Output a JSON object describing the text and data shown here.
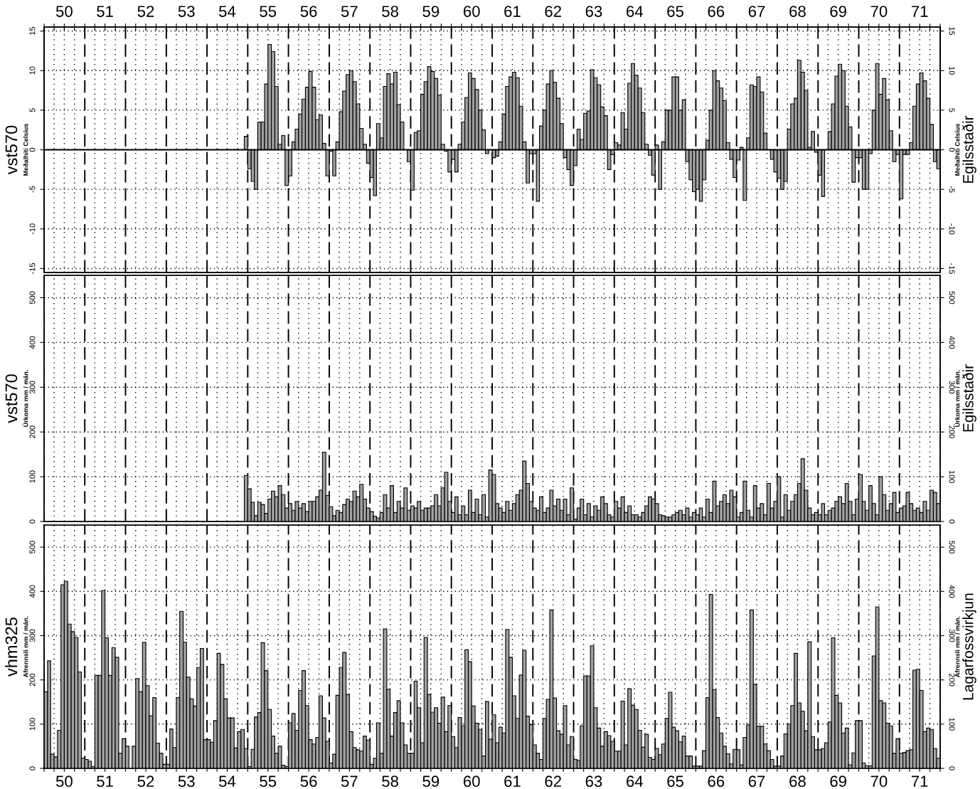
{
  "chart_data": [
    {
      "type": "bar",
      "ylabel": "vst570",
      "y2label": "Egilsstaðir",
      "annotations": [
        "Meðalhiti Celsíus",
        "Meðalhiti Celsíus"
      ],
      "color": "#a0a0a0",
      "grid": true,
      "xlim": [
        "1950-01",
        "1972-01"
      ],
      "x2lim": [
        "1950-01",
        "1972-01"
      ],
      "x2ticks": [
        {
          "value": "1950-01",
          "label": null
        },
        {
          "value": "1950-04",
          "label": null
        },
        {
          "value": "1950-07",
          "label": "50"
        },
        {
          "value": "1950-10",
          "label": null
        },
        {
          "value": "1951-01",
          "label": null
        },
        {
          "value": "1951-04",
          "label": null
        },
        {
          "value": "1951-07",
          "label": "51"
        },
        {
          "value": "1951-10",
          "label": null
        },
        {
          "value": "1952-01",
          "label": null
        },
        {
          "value": "1952-04",
          "label": null
        },
        {
          "value": "1952-07",
          "label": "52"
        },
        {
          "value": "1952-10",
          "label": null
        },
        {
          "value": "1953-01",
          "label": null
        },
        {
          "value": "1953-04",
          "label": null
        },
        {
          "value": "1953-07",
          "label": "53"
        },
        {
          "value": "1953-10",
          "label": null
        },
        {
          "value": "1954-01",
          "label": null
        },
        {
          "value": "1954-04",
          "label": null
        },
        {
          "value": "1954-07",
          "label": "54"
        },
        {
          "value": "1954-10",
          "label": null
        },
        {
          "value": "1955-01",
          "label": null
        },
        {
          "value": "1955-04",
          "label": null
        },
        {
          "value": "1955-07",
          "label": "55"
        },
        {
          "value": "1955-10",
          "label": null
        },
        {
          "value": "1956-01",
          "label": null
        },
        {
          "value": "1956-04",
          "label": null
        },
        {
          "value": "1956-07",
          "label": "56"
        },
        {
          "value": "1956-10",
          "label": null
        },
        {
          "value": "1957-01",
          "label": null
        },
        {
          "value": "1957-04",
          "label": null
        },
        {
          "value": "1957-07",
          "label": "57"
        },
        {
          "value": "1957-10",
          "label": null
        },
        {
          "value": "1958-01",
          "label": null
        },
        {
          "value": "1958-04",
          "label": null
        },
        {
          "value": "1958-07",
          "label": "58"
        },
        {
          "value": "1958-10",
          "label": null
        },
        {
          "value": "1959-01",
          "label": null
        },
        {
          "value": "1959-04",
          "label": null
        },
        {
          "value": "1959-07",
          "label": "59"
        },
        {
          "value": "1959-10",
          "label": null
        },
        {
          "value": "1960-01",
          "label": null
        },
        {
          "value": "1960-04",
          "label": null
        },
        {
          "value": "1960-07",
          "label": "60"
        },
        {
          "value": "1960-10",
          "label": null
        },
        {
          "value": "1961-01",
          "label": null
        },
        {
          "value": "1961-04",
          "label": null
        },
        {
          "value": "1961-07",
          "label": "61"
        },
        {
          "value": "1961-10",
          "label": null
        },
        {
          "value": "1962-01",
          "label": null
        },
        {
          "value": "1962-04",
          "label": null
        },
        {
          "value": "1962-07",
          "label": "62"
        },
        {
          "value": "1962-10",
          "label": null
        },
        {
          "value": "1963-01",
          "label": null
        },
        {
          "value": "1963-04",
          "label": null
        },
        {
          "value": "1963-07",
          "label": "63"
        },
        {
          "value": "1963-10",
          "label": null
        },
        {
          "value": "1964-01",
          "label": null
        },
        {
          "value": "1964-04",
          "label": null
        },
        {
          "value": "1964-07",
          "label": "64"
        },
        {
          "value": "1964-10",
          "label": null
        },
        {
          "value": "1965-01",
          "label": null
        },
        {
          "value": "1965-04",
          "label": null
        },
        {
          "value": "1965-07",
          "label": "65"
        },
        {
          "value": "1965-10",
          "label": null
        },
        {
          "value": "1966-01",
          "label": null
        },
        {
          "value": "1966-04",
          "label": null
        },
        {
          "value": "1966-07",
          "label": "66"
        },
        {
          "value": "1966-10",
          "label": null
        },
        {
          "value": "1967-01",
          "label": null
        },
        {
          "value": "1967-04",
          "label": null
        },
        {
          "value": "1967-07",
          "label": "67"
        },
        {
          "value": "1967-10",
          "label": null
        },
        {
          "value": "1968-01",
          "label": null
        },
        {
          "value": "1968-04",
          "label": null
        },
        {
          "value": "1968-07",
          "label": "68"
        },
        {
          "value": "1968-10",
          "label": null
        },
        {
          "value": "1969-01",
          "label": null
        },
        {
          "value": "1969-04",
          "label": null
        },
        {
          "value": "1969-07",
          "label": "69"
        },
        {
          "value": "1969-10",
          "label": null
        },
        {
          "value": "1970-01",
          "label": null
        },
        {
          "value": "1970-04",
          "label": null
        },
        {
          "value": "1970-07",
          "label": "70"
        },
        {
          "value": "1970-10",
          "label": null
        },
        {
          "value": "1971-01",
          "label": null
        },
        {
          "value": "1971-04",
          "label": null
        },
        {
          "value": "1971-07",
          "label": "71"
        },
        {
          "value": "1971-10",
          "label": null
        },
        {
          "value": "1972-01",
          "label": null
        }
      ],
      "ylim": [
        -15.5,
        15.5
      ],
      "yticks": [
        -15,
        -10,
        -5,
        0,
        5,
        10,
        15
      ],
      "y2lim": [
        -15.5,
        15.5
      ],
      "y2ticks": [
        -15,
        -10,
        -5,
        0,
        5,
        10,
        15
      ],
      "x": [
        "1954-12",
        "1955-01",
        "1955-02",
        "1955-03",
        "1955-04",
        "1955-05",
        "1955-06",
        "1955-07",
        "1955-08",
        "1955-09",
        "1955-10",
        "1955-11",
        "1955-12",
        "1956-01",
        "1956-02",
        "1956-03",
        "1956-04",
        "1956-05",
        "1956-06",
        "1956-07",
        "1956-08",
        "1956-09",
        "1956-10",
        "1956-11",
        "1956-12",
        "1957-01",
        "1957-02",
        "1957-03",
        "1957-04",
        "1957-05",
        "1957-06",
        "1957-07",
        "1957-08",
        "1957-09",
        "1957-10",
        "1957-11",
        "1957-12",
        "1958-01",
        "1958-02",
        "1958-03",
        "1958-04",
        "1958-05",
        "1958-06",
        "1958-07",
        "1958-08",
        "1958-09",
        "1958-10",
        "1958-11",
        "1958-12",
        "1959-01",
        "1959-02",
        "1959-03",
        "1959-04",
        "1959-05",
        "1959-06",
        "1959-07",
        "1959-08",
        "1959-09",
        "1959-10",
        "1959-11",
        "1959-12",
        "1960-01",
        "1960-02",
        "1960-03",
        "1960-04",
        "1960-05",
        "1960-06",
        "1960-07",
        "1960-08",
        "1960-09",
        "1960-10",
        "1960-11",
        "1960-12",
        "1961-01",
        "1961-02",
        "1961-03",
        "1961-04",
        "1961-05",
        "1961-06",
        "1961-07",
        "1961-08",
        "1961-09",
        "1961-10",
        "1961-11",
        "1961-12",
        "1962-01",
        "1962-02",
        "1962-03",
        "1962-04",
        "1962-05",
        "1962-06",
        "1962-07",
        "1962-08",
        "1962-09",
        "1962-10",
        "1962-11",
        "1962-12",
        "1963-01",
        "1963-02",
        "1963-03",
        "1963-04",
        "1963-05",
        "1963-06",
        "1963-07",
        "1963-08",
        "1963-09",
        "1963-10",
        "1963-11",
        "1963-12",
        "1964-01",
        "1964-02",
        "1964-03",
        "1964-04",
        "1964-05",
        "1964-06",
        "1964-07",
        "1964-08",
        "1964-09",
        "1964-10",
        "1964-11",
        "1964-12",
        "1965-01",
        "1965-02",
        "1965-03",
        "1965-04",
        "1965-05",
        "1965-06",
        "1965-07",
        "1965-08",
        "1965-09",
        "1965-10",
        "1965-11",
        "1965-12",
        "1966-01",
        "1966-02",
        "1966-03",
        "1966-04",
        "1966-05",
        "1966-06",
        "1966-07",
        "1966-08",
        "1966-09",
        "1966-10",
        "1966-11",
        "1966-12",
        "1967-01",
        "1967-02",
        "1967-03",
        "1967-04",
        "1967-05",
        "1967-06",
        "1967-07",
        "1967-08",
        "1967-09",
        "1967-10",
        "1967-11",
        "1967-12",
        "1968-01",
        "1968-02",
        "1968-03",
        "1968-04",
        "1968-05",
        "1968-06",
        "1968-07",
        "1968-08",
        "1968-09",
        "1968-10",
        "1968-11",
        "1968-12",
        "1969-01",
        "1969-02",
        "1969-03",
        "1969-04",
        "1969-05",
        "1969-06",
        "1969-07",
        "1969-08",
        "1969-09",
        "1969-10",
        "1969-11",
        "1969-12",
        "1970-01",
        "1970-02",
        "1970-03",
        "1970-04",
        "1970-05",
        "1970-06",
        "1970-07",
        "1970-08",
        "1970-09",
        "1970-10",
        "1970-11",
        "1970-12",
        "1971-01",
        "1971-02",
        "1971-03",
        "1971-04",
        "1971-05",
        "1971-06",
        "1971-07",
        "1971-08",
        "1971-09",
        "1971-10",
        "1971-11",
        "1971-12"
      ],
      "values": [
        1.7,
        -2.4,
        -4.0,
        -5.0,
        3.5,
        3.5,
        8.3,
        13.3,
        12.4,
        8.0,
        0.7,
        1.8,
        -4.5,
        -3.3,
        1.0,
        2.6,
        4.5,
        6.4,
        7.9,
        9.9,
        7.9,
        3.8,
        4.4,
        0.8,
        -3.3,
        -0.2,
        -3.3,
        1.0,
        4.8,
        7.4,
        9.5,
        10.0,
        8.6,
        5.8,
        2.7,
        0.7,
        -1.7,
        -3.5,
        -5.8,
        3.3,
        1.5,
        8.0,
        9.6,
        8.3,
        9.8,
        5.7,
        3.5,
        0.0,
        -1.5,
        -5.1,
        2.2,
        2.4,
        7.0,
        8.6,
        10.5,
        9.9,
        9.0,
        6.9,
        0.7,
        -0.2,
        -2.8,
        -1.2,
        -2.8,
        0.7,
        3.5,
        6.6,
        9.7,
        9.0,
        7.6,
        5.0,
        2.5,
        -0.5,
        null,
        -1.0,
        -0.8,
        1.0,
        4.5,
        8.0,
        9.2,
        9.8,
        9.1,
        5.5,
        1.0,
        -4.2,
        -0.5,
        -0.5,
        -6.5,
        3.0,
        5.0,
        8.3,
        10.0,
        8.5,
        6.5,
        3.3,
        -1.0,
        -2.5,
        -4.5,
        -2.0,
        2.6,
        1.3,
        4.6,
        4.9,
        10.1,
        9.1,
        8.2,
        5.4,
        4.3,
        -2.5,
        -0.6,
        0.9,
        0.6,
        4.7,
        2.6,
        8.4,
        10.9,
        9.4,
        7.8,
        4.7,
        0.7,
        -0.7,
        -3.2,
        0.6,
        -5.0,
        1.0,
        5.0,
        5.0,
        9.2,
        9.2,
        5.0,
        6.3,
        -1.5,
        -3.8,
        -5.3,
        -5.0,
        -6.5,
        -3.8,
        1.2,
        5.0,
        10.0,
        8.7,
        7.8,
        6.2,
        0.9,
        -1.2,
        -3.5,
        -1.3,
        0.3,
        -6.4,
        1.5,
        8.2,
        8.0,
        9.2,
        7.3,
        2.1,
        0.0,
        -1.2,
        -2.8,
        -3.6,
        -5.0,
        -4.0,
        2.6,
        5.8,
        6.5,
        11.3,
        9.8,
        7.5,
        0.3,
        2.3,
        -0.3,
        -3.2,
        -5.9,
        0.0,
        2.3,
        5.8,
        9.3,
        10.8,
        10.0,
        5.5,
        2.9,
        -4.1,
        -1.0,
        -1.0,
        -5.0,
        -5.0,
        -0.5,
        5.0,
        10.9,
        7.0,
        9.0,
        6.3,
        2.4,
        -1.5,
        -0.6,
        -6.2,
        -0.6,
        -0.6,
        0.9,
        5.5,
        8.3,
        9.7,
        8.7,
        6.5,
        3.2,
        -1.5,
        -2.4
      ]
    },
    {
      "type": "bar",
      "ylabel": "vst570",
      "y2label": "Egilsstaðir",
      "annotations": [
        "Úrkoma mm / mán.",
        "Úrkoma mm / mán."
      ],
      "color": "#a0a0a0",
      "grid": true,
      "tick_labels": "y",
      "xlim": [
        "1950-01",
        "1972-01"
      ],
      "ylim": [
        0,
        550
      ],
      "yticks": [
        0,
        100,
        200,
        300,
        400,
        500
      ],
      "y2lim": [
        0,
        550
      ],
      "y2ticks": [
        0,
        100,
        200,
        300,
        400,
        500
      ],
      "x": [
        "1954-12",
        "1955-01",
        "1955-02",
        "1955-03",
        "1955-04",
        "1955-05",
        "1955-06",
        "1955-07",
        "1955-08",
        "1955-09",
        "1955-10",
        "1955-11",
        "1955-12",
        "1956-01",
        "1956-02",
        "1956-03",
        "1956-04",
        "1956-05",
        "1956-06",
        "1956-07",
        "1956-08",
        "1956-09",
        "1956-10",
        "1956-11",
        "1956-12",
        "1957-01",
        "1957-02",
        "1957-03",
        "1957-04",
        "1957-05",
        "1957-06",
        "1957-07",
        "1957-08",
        "1957-09",
        "1957-10",
        "1957-11",
        "1957-12",
        "1958-01",
        "1958-02",
        "1958-03",
        "1958-04",
        "1958-05",
        "1958-06",
        "1958-07",
        "1958-08",
        "1958-09",
        "1958-10",
        "1958-11",
        "1958-12",
        "1959-01",
        "1959-02",
        "1959-03",
        "1959-04",
        "1959-05",
        "1959-06",
        "1959-07",
        "1959-08",
        "1959-09",
        "1959-10",
        "1959-11",
        "1959-12",
        "1960-01",
        "1960-02",
        "1960-03",
        "1960-04",
        "1960-05",
        "1960-06",
        "1960-07",
        "1960-08",
        "1960-09",
        "1960-10",
        "1960-11",
        "1960-12",
        "1961-01",
        "1961-02",
        "1961-03",
        "1961-04",
        "1961-05",
        "1961-06",
        "1961-07",
        "1961-08",
        "1961-09",
        "1961-10",
        "1961-11",
        "1961-12",
        "1962-01",
        "1962-02",
        "1962-03",
        "1962-04",
        "1962-05",
        "1962-06",
        "1962-07",
        "1962-08",
        "1962-09",
        "1962-10",
        "1962-11",
        "1962-12",
        "1963-01",
        "1963-02",
        "1963-03",
        "1963-04",
        "1963-05",
        "1963-06",
        "1963-07",
        "1963-08",
        "1963-09",
        "1963-10",
        "1963-11",
        "1963-12",
        "1964-01",
        "1964-02",
        "1964-03",
        "1964-04",
        "1964-05",
        "1964-06",
        "1964-07",
        "1964-08",
        "1964-09",
        "1964-10",
        "1964-11",
        "1964-12",
        "1965-01",
        "1965-02",
        "1965-03",
        "1965-04",
        "1965-05",
        "1965-06",
        "1965-07",
        "1965-08",
        "1965-09",
        "1965-10",
        "1965-11",
        "1965-12",
        "1966-01",
        "1966-02",
        "1966-03",
        "1966-04",
        "1966-05",
        "1966-06",
        "1966-07",
        "1966-08",
        "1966-09",
        "1966-10",
        "1966-11",
        "1966-12",
        "1967-01",
        "1967-02",
        "1967-03",
        "1967-04",
        "1967-05",
        "1967-06",
        "1967-07",
        "1967-08",
        "1967-09",
        "1967-10",
        "1967-11",
        "1967-12",
        "1968-01",
        "1968-02",
        "1968-03",
        "1968-04",
        "1968-05",
        "1968-06",
        "1968-07",
        "1968-08",
        "1968-09",
        "1968-10",
        "1968-11",
        "1968-12",
        "1969-01",
        "1969-02",
        "1969-03",
        "1969-04",
        "1969-05",
        "1969-06",
        "1969-07",
        "1969-08",
        "1969-09",
        "1969-10",
        "1969-11",
        "1969-12",
        "1970-01",
        "1970-02",
        "1970-03",
        "1970-04",
        "1970-05",
        "1970-06",
        "1970-07",
        "1970-08",
        "1970-09",
        "1970-10",
        "1970-11",
        "1970-12",
        "1971-01",
        "1971-02",
        "1971-03",
        "1971-04",
        "1971-05",
        "1971-06",
        "1971-07",
        "1971-08",
        "1971-09",
        "1971-10",
        "1971-11",
        "1971-12"
      ],
      "values": [
        103,
        73,
        43,
        13,
        43,
        38,
        18,
        50,
        68,
        55,
        80,
        60,
        30,
        40,
        25,
        45,
        30,
        40,
        22,
        45,
        45,
        55,
        70,
        155,
        58,
        33,
        13,
        25,
        20,
        38,
        50,
        45,
        68,
        55,
        83,
        50,
        30,
        22,
        12,
        8,
        20,
        60,
        30,
        80,
        20,
        45,
        30,
        75,
        25,
        35,
        30,
        45,
        25,
        30,
        30,
        35,
        60,
        35,
        75,
        110,
        45,
        20,
        55,
        15,
        35,
        15,
        70,
        20,
        50,
        15,
        60,
        10,
        115,
        105,
        40,
        30,
        20,
        45,
        25,
        40,
        60,
        70,
        135,
        85,
        45,
        30,
        25,
        55,
        20,
        30,
        70,
        35,
        50,
        25,
        50,
        15,
        75,
        5,
        30,
        50,
        15,
        40,
        10,
        35,
        25,
        55,
        40,
        15,
        10,
        45,
        30,
        55,
        20,
        35,
        15,
        15,
        10,
        20,
        35,
        55,
        50,
        40,
        15,
        13,
        10,
        10,
        15,
        20,
        25,
        15,
        30,
        10,
        20,
        15,
        30,
        10,
        50,
        20,
        90,
        35,
        45,
        60,
        40,
        70,
        55,
        10,
        20,
        90,
        25,
        10,
        80,
        30,
        40,
        15,
        85,
        30,
        45,
        100,
        10,
        60,
        25,
        45,
        60,
        85,
        140,
        70,
        30,
        15,
        20,
        15,
        40,
        15,
        25,
        30,
        45,
        55,
        40,
        85,
        45,
        15,
        50,
        105,
        45,
        25,
        80,
        40,
        15,
        100,
        60,
        25,
        40,
        65,
        20,
        30,
        35,
        65,
        40,
        25,
        30,
        20,
        45,
        25,
        70,
        65,
        40
      ]
    },
    {
      "type": "bar",
      "ylabel": "vhm325",
      "y2label": "Lagarfossvirkjun",
      "annotations": [
        "Afrennsli mm / mán.",
        "Afrennsli mm / mán."
      ],
      "color": "#a0a0a0",
      "grid": true,
      "xlim": [
        "1950-01",
        "1972-01"
      ],
      "xticks": [
        {
          "value": "1950-01",
          "label": null
        },
        {
          "value": "1950-04",
          "label": null
        },
        {
          "value": "1950-07",
          "label": "50"
        },
        {
          "value": "1950-10",
          "label": null
        },
        {
          "value": "1951-01",
          "label": null
        },
        {
          "value": "1951-04",
          "label": null
        },
        {
          "value": "1951-07",
          "label": "51"
        },
        {
          "value": "1951-10",
          "label": null
        },
        {
          "value": "1952-01",
          "label": null
        },
        {
          "value": "1952-04",
          "label": null
        },
        {
          "value": "1952-07",
          "label": "52"
        },
        {
          "value": "1952-10",
          "label": null
        },
        {
          "value": "1953-01",
          "label": null
        },
        {
          "value": "1953-04",
          "label": null
        },
        {
          "value": "1953-07",
          "label": "53"
        },
        {
          "value": "1953-10",
          "label": null
        },
        {
          "value": "1954-01",
          "label": null
        },
        {
          "value": "1954-04",
          "label": null
        },
        {
          "value": "1954-07",
          "label": "54"
        },
        {
          "value": "1954-10",
          "label": null
        },
        {
          "value": "1955-01",
          "label": null
        },
        {
          "value": "1955-04",
          "label": null
        },
        {
          "value": "1955-07",
          "label": "55"
        },
        {
          "value": "1955-10",
          "label": null
        },
        {
          "value": "1956-01",
          "label": null
        },
        {
          "value": "1956-04",
          "label": null
        },
        {
          "value": "1956-07",
          "label": "56"
        },
        {
          "value": "1956-10",
          "label": null
        },
        {
          "value": "1957-01",
          "label": null
        },
        {
          "value": "1957-04",
          "label": null
        },
        {
          "value": "1957-07",
          "label": "57"
        },
        {
          "value": "1957-10",
          "label": null
        },
        {
          "value": "1958-01",
          "label": null
        },
        {
          "value": "1958-04",
          "label": null
        },
        {
          "value": "1958-07",
          "label": "58"
        },
        {
          "value": "1958-10",
          "label": null
        },
        {
          "value": "1959-01",
          "label": null
        },
        {
          "value": "1959-04",
          "label": null
        },
        {
          "value": "1959-07",
          "label": "59"
        },
        {
          "value": "1959-10",
          "label": null
        },
        {
          "value": "1960-01",
          "label": null
        },
        {
          "value": "1960-04",
          "label": null
        },
        {
          "value": "1960-07",
          "label": "60"
        },
        {
          "value": "1960-10",
          "label": null
        },
        {
          "value": "1961-01",
          "label": null
        },
        {
          "value": "1961-04",
          "label": null
        },
        {
          "value": "1961-07",
          "label": "61"
        },
        {
          "value": "1961-10",
          "label": null
        },
        {
          "value": "1962-01",
          "label": null
        },
        {
          "value": "1962-04",
          "label": null
        },
        {
          "value": "1962-07",
          "label": "62"
        },
        {
          "value": "1962-10",
          "label": null
        },
        {
          "value": "1963-01",
          "label": null
        },
        {
          "value": "1963-04",
          "label": null
        },
        {
          "value": "1963-07",
          "label": "63"
        },
        {
          "value": "1963-10",
          "label": null
        },
        {
          "value": "1964-01",
          "label": null
        },
        {
          "value": "1964-04",
          "label": null
        },
        {
          "value": "1964-07",
          "label": "64"
        },
        {
          "value": "1964-10",
          "label": null
        },
        {
          "value": "1965-01",
          "label": null
        },
        {
          "value": "1965-04",
          "label": null
        },
        {
          "value": "1965-07",
          "label": "65"
        },
        {
          "value": "1965-10",
          "label": null
        },
        {
          "value": "1966-01",
          "label": null
        },
        {
          "value": "1966-04",
          "label": null
        },
        {
          "value": "1966-07",
          "label": "66"
        },
        {
          "value": "1966-10",
          "label": null
        },
        {
          "value": "1967-01",
          "label": null
        },
        {
          "value": "1967-04",
          "label": null
        },
        {
          "value": "1967-07",
          "label": "67"
        },
        {
          "value": "1967-10",
          "label": null
        },
        {
          "value": "1968-01",
          "label": null
        },
        {
          "value": "1968-04",
          "label": null
        },
        {
          "value": "1968-07",
          "label": "68"
        },
        {
          "value": "1968-10",
          "label": null
        },
        {
          "value": "1969-01",
          "label": null
        },
        {
          "value": "1969-04",
          "label": null
        },
        {
          "value": "1969-07",
          "label": "69"
        },
        {
          "value": "1969-10",
          "label": null
        },
        {
          "value": "1970-01",
          "label": null
        },
        {
          "value": "1970-04",
          "label": null
        },
        {
          "value": "1970-07",
          "label": "70"
        },
        {
          "value": "1970-10",
          "label": null
        },
        {
          "value": "1971-01",
          "label": null
        },
        {
          "value": "1971-04",
          "label": null
        },
        {
          "value": "1971-07",
          "label": "71"
        },
        {
          "value": "1971-10",
          "label": null
        },
        {
          "value": "1972-01",
          "label": null
        }
      ],
      "ylim": [
        0,
        550
      ],
      "yticks": [
        0,
        100,
        200,
        300,
        400,
        500
      ],
      "y2lim": [
        0,
        550
      ],
      "y2ticks": [
        0,
        100,
        200,
        300,
        400,
        500
      ],
      "x": [
        "1950-01",
        "1950-02",
        "1950-03",
        "1950-04",
        "1950-05",
        "1950-06",
        "1950-07",
        "1950-08",
        "1950-09",
        "1950-10",
        "1950-11",
        "1950-12",
        "1951-01",
        "1951-02",
        "1951-03",
        "1951-04",
        "1951-05",
        "1951-06",
        "1951-07",
        "1951-08",
        "1951-09",
        "1951-10",
        "1951-11",
        "1951-12",
        "1952-01",
        "1952-02",
        "1952-03",
        "1952-04",
        "1952-05",
        "1952-06",
        "1952-07",
        "1952-08",
        "1952-09",
        "1952-10",
        "1952-11",
        "1952-12",
        "1953-01",
        "1953-02",
        "1953-03",
        "1953-04",
        "1953-05",
        "1953-06",
        "1953-07",
        "1953-08",
        "1953-09",
        "1953-10",
        "1953-11",
        "1953-12",
        "1954-01",
        "1954-02",
        "1954-03",
        "1954-04",
        "1954-05",
        "1954-06",
        "1954-07",
        "1954-08",
        "1954-09",
        "1954-10",
        "1954-11",
        "1954-12",
        "1955-01",
        "1955-02",
        "1955-03",
        "1955-04",
        "1955-05",
        "1955-06",
        "1955-07",
        "1955-08",
        "1955-09",
        "1955-10",
        "1955-11",
        "1955-12",
        "1956-01",
        "1956-02",
        "1956-03",
        "1956-04",
        "1956-05",
        "1956-06",
        "1956-07",
        "1956-08",
        "1956-09",
        "1956-10",
        "1956-11",
        "1956-12",
        "1957-01",
        "1957-02",
        "1957-03",
        "1957-04",
        "1957-05",
        "1957-06",
        "1957-07",
        "1957-08",
        "1957-09",
        "1957-10",
        "1957-11",
        "1957-12",
        "1958-01",
        "1958-02",
        "1958-03",
        "1958-04",
        "1958-05",
        "1958-06",
        "1958-07",
        "1958-08",
        "1958-09",
        "1958-10",
        "1958-11",
        "1958-12",
        "1959-01",
        "1959-02",
        "1959-03",
        "1959-04",
        "1959-05",
        "1959-06",
        "1959-07",
        "1959-08",
        "1959-09",
        "1959-10",
        "1959-11",
        "1959-12",
        "1960-01",
        "1960-02",
        "1960-03",
        "1960-04",
        "1960-05",
        "1960-06",
        "1960-07",
        "1960-08",
        "1960-09",
        "1960-10",
        "1960-11",
        "1960-12",
        "1961-01",
        "1961-02",
        "1961-03",
        "1961-04",
        "1961-05",
        "1961-06",
        "1961-07",
        "1961-08",
        "1961-09",
        "1961-10",
        "1961-11",
        "1961-12",
        "1962-01",
        "1962-02",
        "1962-03",
        "1962-04",
        "1962-05",
        "1962-06",
        "1962-07",
        "1962-08",
        "1962-09",
        "1962-10",
        "1962-11",
        "1962-12",
        "1963-01",
        "1963-02",
        "1963-03",
        "1963-04",
        "1963-05",
        "1963-06",
        "1963-07",
        "1963-08",
        "1963-09",
        "1963-10",
        "1963-11",
        "1963-12",
        "1964-01",
        "1964-02",
        "1964-03",
        "1964-04",
        "1964-05",
        "1964-06",
        "1964-07",
        "1964-08",
        "1964-09",
        "1964-10",
        "1964-11",
        "1964-12",
        "1965-01",
        "1965-02",
        "1965-03",
        "1965-04",
        "1965-05",
        "1965-06",
        "1965-07",
        "1965-08",
        "1965-09",
        "1965-10",
        "1965-11",
        "1965-12",
        "1966-01",
        "1966-02",
        "1966-03",
        "1966-04",
        "1966-05",
        "1966-06",
        "1966-07",
        "1966-08",
        "1966-09",
        "1966-10",
        "1966-11",
        "1966-12",
        "1967-01",
        "1967-02",
        "1967-03",
        "1967-04",
        "1967-05",
        "1967-06",
        "1967-07",
        "1967-08",
        "1967-09",
        "1967-10",
        "1967-11",
        "1967-12",
        "1968-01",
        "1968-02",
        "1968-03",
        "1968-04",
        "1968-05",
        "1968-06",
        "1968-07",
        "1968-08",
        "1968-09",
        "1968-10",
        "1968-11",
        "1968-12",
        "1969-01",
        "1969-02",
        "1969-03",
        "1969-04",
        "1969-05",
        "1969-06",
        "1969-07",
        "1969-08",
        "1969-09",
        "1969-10",
        "1969-11",
        "1969-12",
        "1970-01",
        "1970-02",
        "1970-03",
        "1970-04",
        "1970-05",
        "1970-06",
        "1970-07",
        "1970-08",
        "1970-09",
        "1970-10",
        "1970-11",
        "1970-12",
        "1971-01",
        "1971-02",
        "1971-03",
        "1971-04",
        "1971-05",
        "1971-06",
        "1971-07",
        "1971-08",
        "1971-09",
        "1971-10",
        "1971-11",
        "1971-12"
      ],
      "values": [
        173,
        243,
        32,
        26,
        86,
        415,
        423,
        326,
        309,
        296,
        218,
        23,
        20,
        16,
        4,
        210,
        210,
        402,
        295,
        210,
        273,
        251,
        34,
        67,
        50,
        null,
        50,
        203,
        173,
        285,
        187,
        119,
        160,
        57,
        34,
        9,
        9,
        89,
        47,
        160,
        355,
        285,
        206,
        157,
        141,
        228,
        271,
        65,
        65,
        59,
        108,
        260,
        235,
        157,
        114,
        114,
        46,
        83,
        88,
        45,
        4,
        43,
        116,
        126,
        284,
        221,
        133,
        73,
        34,
        50,
        7,
        4,
        103,
        124,
        86,
        176,
        221,
        142,
        65,
        55,
        70,
        164,
        114,
        61,
        12,
        32,
        165,
        228,
        262,
        167,
        83,
        47,
        42,
        39,
        73,
        64,
        9,
        23,
        103,
        34,
        315,
        179,
        73,
        126,
        153,
        103,
        53,
        34,
        34,
        197,
        137,
        58,
        296,
        167,
        127,
        137,
        102,
        161,
        83,
        142,
        72,
        47,
        115,
        96,
        268,
        241,
        141,
        102,
        88,
        28,
        151,
        66,
        121,
        58,
        93,
        80,
        314,
        251,
        164,
        113,
        211,
        267,
        118,
        99,
        53,
        34,
        20,
        113,
        156,
        358,
        159,
        85,
        77,
        142,
        53,
        72,
        20,
        18,
        96,
        209,
        209,
        277,
        137,
        91,
        50,
        83,
        74,
        61,
        39,
        39,
        152,
        53,
        180,
        143,
        133,
        86,
        48,
        77,
        25,
        20,
        45,
        31,
        55,
        113,
        172,
        93,
        85,
        60,
        73,
        28,
        28,
        5,
        5,
        5,
        40,
        160,
        393,
        178,
        115,
        80,
        50,
        33,
        10,
        43,
        42,
        8,
        70,
        98,
        358,
        190,
        95,
        95,
        55,
        40,
        20,
        5,
        5,
        28,
        78,
        100,
        142,
        260,
        148,
        129,
        85,
        286,
        72,
        42,
        42,
        45,
        58,
        105,
        295,
        165,
        148,
        80,
        91,
        8,
        35,
        108,
        108,
        12,
        6,
        6,
        254,
        365,
        153,
        148,
        102,
        96,
        34,
        67,
        34,
        36,
        40,
        42,
        222,
        224,
        176,
        83,
        91,
        88,
        45,
        23
      ]
    }
  ]
}
